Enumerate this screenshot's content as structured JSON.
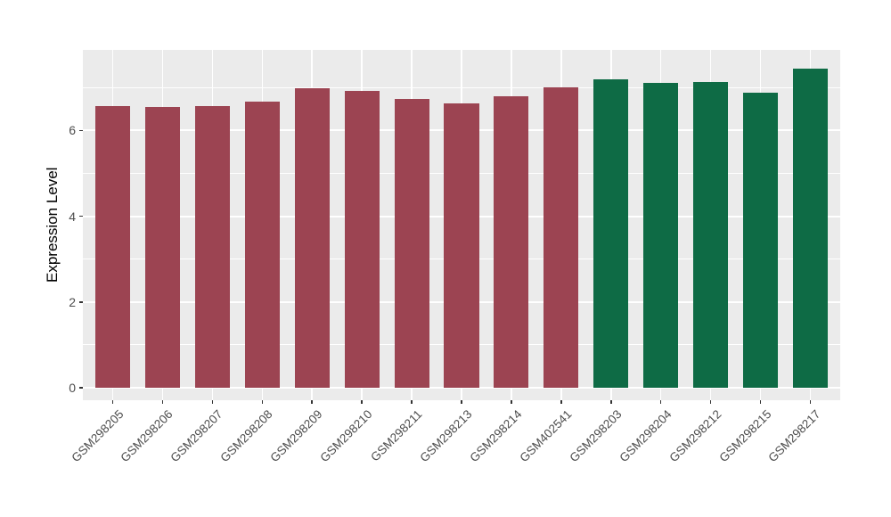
{
  "chart_data": {
    "type": "bar",
    "title": "",
    "xlabel": "",
    "ylabel": "Expression Level",
    "categories": [
      "GSM298205",
      "GSM298206",
      "GSM298207",
      "GSM298208",
      "GSM298209",
      "GSM298210",
      "GSM298211",
      "GSM298213",
      "GSM298214",
      "GSM402541",
      "GSM298203",
      "GSM298204",
      "GSM298212",
      "GSM298215",
      "GSM298217"
    ],
    "values": [
      6.57,
      6.54,
      6.56,
      6.68,
      6.99,
      6.93,
      6.73,
      6.64,
      6.8,
      7.0,
      7.19,
      7.11,
      7.14,
      6.88,
      7.44
    ],
    "groups": [
      0,
      0,
      0,
      0,
      0,
      0,
      0,
      0,
      0,
      0,
      1,
      1,
      1,
      1,
      1
    ],
    "palette": [
      "#9C4452",
      "#0E6B45"
    ],
    "ytick_labels": [
      "0",
      "2",
      "4",
      "6"
    ],
    "ytick_values": [
      0,
      2,
      4,
      6
    ],
    "minor_gridline_values": [
      1,
      3,
      5,
      7
    ],
    "ylim": [
      0,
      7.88
    ],
    "legend_position": "none",
    "grid": "white major and minor horizontal lines, white vertical lines at category centers, on gray panel",
    "panel_background": "#EBEBEB",
    "gridline_color": "#FFFFFF",
    "axis_text_color": "#4D4D4D",
    "axis_title_color": "#000000",
    "tick_mark_color": "#333333"
  }
}
